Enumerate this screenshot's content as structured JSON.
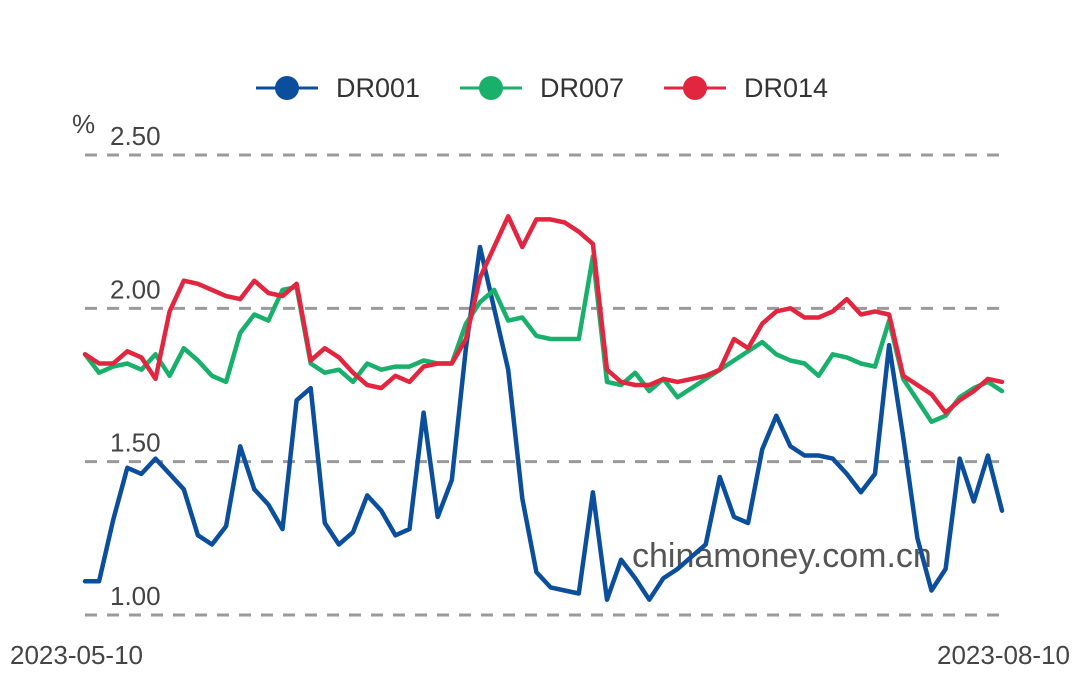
{
  "chart_data": {
    "type": "line",
    "y_unit": "%",
    "ylim": [
      1.0,
      2.5
    ],
    "yticks": [
      "1.00",
      "1.50",
      "2.00",
      "2.50"
    ],
    "x_start_label": "2023-05-10",
    "x_end_label": "2023-08-10",
    "grid": true,
    "legend_position": "top",
    "watermark": "chinamoney.com.cn",
    "series": [
      {
        "name": "DR001",
        "color": "#0b4f9c",
        "values": [
          1.11,
          1.11,
          1.31,
          1.48,
          1.46,
          1.51,
          1.46,
          1.41,
          1.26,
          1.23,
          1.29,
          1.55,
          1.41,
          1.36,
          1.28,
          1.7,
          1.74,
          1.3,
          1.23,
          1.27,
          1.39,
          1.34,
          1.26,
          1.28,
          1.66,
          1.32,
          1.44,
          1.87,
          2.2,
          2.0,
          1.8,
          1.38,
          1.14,
          1.09,
          1.08,
          1.07,
          1.4,
          1.05,
          1.18,
          1.12,
          1.05,
          1.12,
          1.15,
          1.19,
          1.23,
          1.45,
          1.32,
          1.3,
          1.54,
          1.65,
          1.55,
          1.52,
          1.52,
          1.51,
          1.46,
          1.4,
          1.46,
          1.88,
          1.58,
          1.25,
          1.08,
          1.15,
          1.51,
          1.37,
          1.52,
          1.34
        ]
      },
      {
        "name": "DR007",
        "color": "#18b06a",
        "values": [
          1.85,
          1.79,
          1.81,
          1.82,
          1.8,
          1.85,
          1.78,
          1.87,
          1.83,
          1.78,
          1.76,
          1.92,
          1.98,
          1.96,
          2.06,
          2.07,
          1.82,
          1.79,
          1.8,
          1.76,
          1.82,
          1.8,
          1.81,
          1.81,
          1.83,
          1.82,
          1.82,
          1.95,
          2.02,
          2.06,
          1.96,
          1.97,
          1.91,
          1.9,
          1.9,
          1.9,
          2.17,
          1.76,
          1.75,
          1.79,
          1.73,
          1.77,
          1.71,
          1.74,
          1.77,
          1.8,
          1.83,
          1.86,
          1.89,
          1.85,
          1.83,
          1.82,
          1.78,
          1.85,
          1.84,
          1.82,
          1.81,
          1.96,
          1.77,
          1.7,
          1.63,
          1.65,
          1.71,
          1.74,
          1.76,
          1.73
        ]
      },
      {
        "name": "DR014",
        "color": "#e2263f",
        "values": [
          1.85,
          1.82,
          1.82,
          1.86,
          1.84,
          1.77,
          1.99,
          2.09,
          2.08,
          2.06,
          2.04,
          2.03,
          2.09,
          2.05,
          2.04,
          2.08,
          1.83,
          1.87,
          1.84,
          1.79,
          1.75,
          1.74,
          1.78,
          1.76,
          1.81,
          1.82,
          1.82,
          1.9,
          2.1,
          2.2,
          2.3,
          2.2,
          2.29,
          2.29,
          2.28,
          2.25,
          2.21,
          1.8,
          1.76,
          1.75,
          1.75,
          1.77,
          1.76,
          1.77,
          1.78,
          1.8,
          1.9,
          1.87,
          1.95,
          1.99,
          2.0,
          1.97,
          1.97,
          1.99,
          2.03,
          1.98,
          1.99,
          1.98,
          1.78,
          1.75,
          1.72,
          1.66,
          1.7,
          1.73,
          1.77,
          1.76
        ]
      }
    ]
  }
}
